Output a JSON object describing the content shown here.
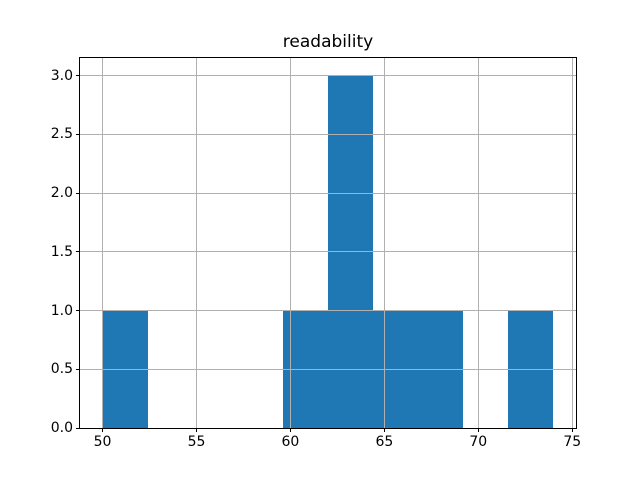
{
  "chart_data": {
    "type": "bar",
    "kind": "histogram",
    "title": "readability",
    "xlabel": "",
    "ylabel": "",
    "bin_edges": [
      50,
      52.4,
      54.8,
      57.2,
      59.6,
      62,
      64.4,
      66.8,
      69.2,
      71.6,
      74
    ],
    "values": [
      1,
      0,
      0,
      0,
      1,
      3,
      1,
      1,
      0,
      1
    ],
    "xlim": [
      48.8,
      75.2
    ],
    "ylim": [
      0,
      3.15
    ],
    "xticks": [
      50,
      55,
      60,
      65,
      70,
      75
    ],
    "xtick_labels": [
      "50",
      "55",
      "60",
      "65",
      "70",
      "75"
    ],
    "yticks": [
      0,
      0.5,
      1,
      1.5,
      2,
      2.5,
      3
    ],
    "ytick_labels": [
      "0.0",
      "0.5",
      "1.0",
      "1.5",
      "2.0",
      "2.5",
      "3.0"
    ],
    "grid": true,
    "grid_above_bars": true,
    "legend": null,
    "colors": {
      "bar": "#1f77b4",
      "grid": "#b0b0b0",
      "spine": "#000000",
      "background": "#ffffff",
      "text": "#000000"
    }
  }
}
